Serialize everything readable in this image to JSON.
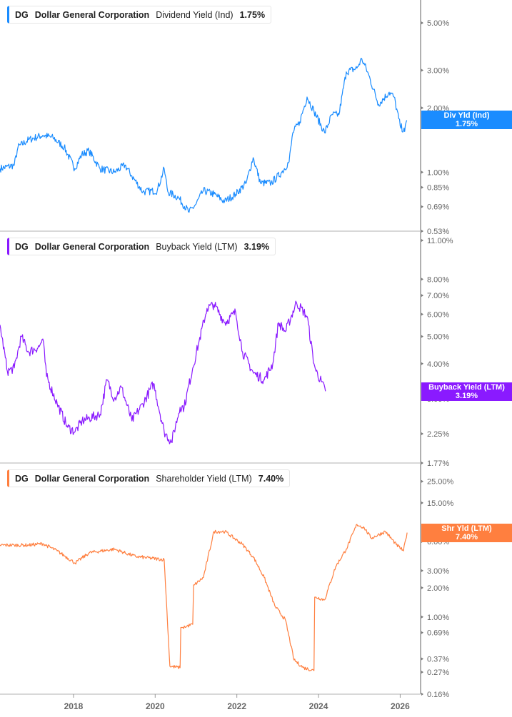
{
  "chart_data": [
    {
      "type": "line",
      "legend": {
        "ticker": "DG",
        "company": "Dollar General Corporation",
        "metric": "Dividend Yield (Ind)",
        "value": "1.75%"
      },
      "value_label": {
        "name": "Div Yld (Ind)",
        "value": "1.75%"
      },
      "color": "#1a8cff",
      "y_scale": "log",
      "ylim": [
        0.53,
        6.4
      ],
      "y_ticks": [
        "5.00%",
        "3.00%",
        "2.00%",
        "1.00%",
        "0.85%",
        "0.69%",
        "0.53%"
      ],
      "y_tick_values": [
        5.0,
        3.0,
        2.0,
        1.0,
        0.85,
        0.69,
        0.53
      ],
      "series": [
        {
          "x": [
            2016.2,
            2016.55,
            2016.64,
            2016.9,
            2017.25,
            2017.5,
            2017.77,
            2018.03,
            2018.2,
            2018.38,
            2018.65,
            2019.0,
            2019.26,
            2019.43,
            2019.7,
            2020.05,
            2020.22,
            2020.31,
            2020.57,
            2020.83,
            2021.0,
            2021.18,
            2021.44,
            2021.7,
            2021.97,
            2022.23,
            2022.4,
            2022.58,
            2022.84,
            2023.1,
            2023.28,
            2023.37,
            2023.54,
            2023.72,
            2023.89,
            2024.15,
            2024.33,
            2024.5,
            2024.68,
            2024.94,
            2025.06,
            2025.2,
            2025.47,
            2025.73,
            2025.85,
            2026.0,
            2026.11,
            2026.16
          ],
          "y": [
            1.04,
            1.08,
            1.31,
            1.42,
            1.49,
            1.45,
            1.31,
            1.04,
            1.21,
            1.26,
            1.04,
            1.0,
            1.08,
            0.96,
            0.81,
            0.82,
            1.04,
            0.81,
            0.76,
            0.65,
            0.71,
            0.82,
            0.79,
            0.73,
            0.79,
            0.89,
            1.17,
            0.89,
            0.89,
            1.0,
            1.12,
            1.53,
            1.72,
            2.25,
            1.93,
            1.53,
            1.86,
            1.86,
            2.95,
            3.07,
            3.39,
            2.95,
            2.08,
            2.37,
            2.25,
            1.65,
            1.55,
            1.75
          ]
        }
      ]
    },
    {
      "type": "line",
      "legend": {
        "ticker": "DG",
        "company": "Dollar General Corporation",
        "metric": "Buyback Yield (LTM)",
        "value": "3.19%"
      },
      "value_label": {
        "name": "Buyback Yield (LTM)",
        "value": "3.19%"
      },
      "color": "#8a1aff",
      "y_scale": "log",
      "ylim": [
        1.77,
        11.8
      ],
      "y_ticks": [
        "11.00%",
        "8.00%",
        "7.00%",
        "6.00%",
        "5.00%",
        "4.00%",
        "3.00%",
        "2.25%",
        "1.77%"
      ],
      "y_tick_values": [
        11.0,
        8.0,
        7.0,
        6.0,
        5.0,
        4.0,
        3.0,
        2.25,
        1.77
      ],
      "series": [
        {
          "x": [
            2016.2,
            2016.38,
            2016.55,
            2016.72,
            2016.9,
            2017.16,
            2017.25,
            2017.34,
            2017.6,
            2017.86,
            2018.04,
            2018.21,
            2018.39,
            2018.65,
            2018.82,
            2019.0,
            2019.17,
            2019.43,
            2019.7,
            2019.96,
            2020.22,
            2020.4,
            2020.61,
            2020.71,
            2020.92,
            2021.06,
            2021.27,
            2021.44,
            2021.71,
            2021.97,
            2022.14,
            2022.41,
            2022.67,
            2022.88,
            2023.02,
            2023.19,
            2023.46,
            2023.72,
            2023.89,
            2023.94,
            2024.07,
            2024.17
          ],
          "y": [
            5.5,
            3.76,
            3.86,
            5.0,
            4.4,
            4.6,
            4.9,
            3.6,
            2.88,
            2.37,
            2.29,
            2.5,
            2.56,
            2.64,
            3.5,
            3.0,
            3.3,
            2.5,
            2.88,
            3.4,
            2.29,
            2.1,
            2.8,
            2.8,
            3.86,
            4.7,
            6.3,
            6.5,
            5.6,
            6.1,
            4.4,
            3.7,
            3.5,
            4.0,
            5.6,
            5.2,
            6.6,
            5.9,
            4.0,
            3.76,
            3.45,
            3.19
          ]
        }
      ]
    },
    {
      "type": "line",
      "legend": {
        "ticker": "DG",
        "company": "Dollar General Corporation",
        "metric": "Shareholder Yield (LTM)",
        "value": "7.40%"
      },
      "value_label": {
        "name": "Shr Yld (LTM)",
        "value": "7.40%"
      },
      "color": "#ff7f3f",
      "y_scale": "log",
      "ylim": [
        0.16,
        38
      ],
      "y_ticks": [
        "25.00%",
        "15.00%",
        "8.00%",
        "6.00%",
        "3.00%",
        "2.00%",
        "1.00%",
        "0.69%",
        "0.37%",
        "0.27%",
        "0.16%"
      ],
      "y_tick_values": [
        25.0,
        15.0,
        8.0,
        6.0,
        3.0,
        2.0,
        1.0,
        0.69,
        0.37,
        0.27,
        0.16
      ],
      "x_ticks": [
        "2018",
        "2020",
        "2022",
        "2024",
        "2026"
      ],
      "x_tick_values": [
        2018,
        2020,
        2022,
        2024,
        2026
      ],
      "xlim": [
        2016.2,
        2026.5
      ],
      "series": [
        {
          "x": [
            2016.2,
            2016.55,
            2016.9,
            2017.25,
            2017.6,
            2018.04,
            2018.39,
            2019.0,
            2019.52,
            2020.22,
            2020.36,
            2020.61,
            2020.68,
            2020.92,
            2020.96,
            2021.18,
            2021.44,
            2021.71,
            2022.14,
            2022.41,
            2022.67,
            2022.93,
            2023.19,
            2023.4,
            2023.63,
            2023.89,
            2023.94,
            2024.15,
            2024.42,
            2024.68,
            2024.94,
            2025.12,
            2025.29,
            2025.64,
            2025.9,
            2026.08,
            2026.17
          ],
          "y": [
            5.5,
            5.5,
            5.5,
            5.7,
            4.8,
            3.6,
            4.6,
            5.0,
            4.2,
            3.9,
            0.31,
            0.3,
            0.78,
            0.84,
            2.14,
            2.55,
            7.6,
            7.6,
            5.6,
            4.1,
            2.55,
            1.3,
            0.93,
            0.36,
            0.3,
            0.28,
            1.6,
            1.5,
            3.3,
            5.0,
            9.0,
            8.3,
            6.5,
            7.6,
            5.6,
            4.8,
            7.4
          ]
        }
      ]
    }
  ]
}
